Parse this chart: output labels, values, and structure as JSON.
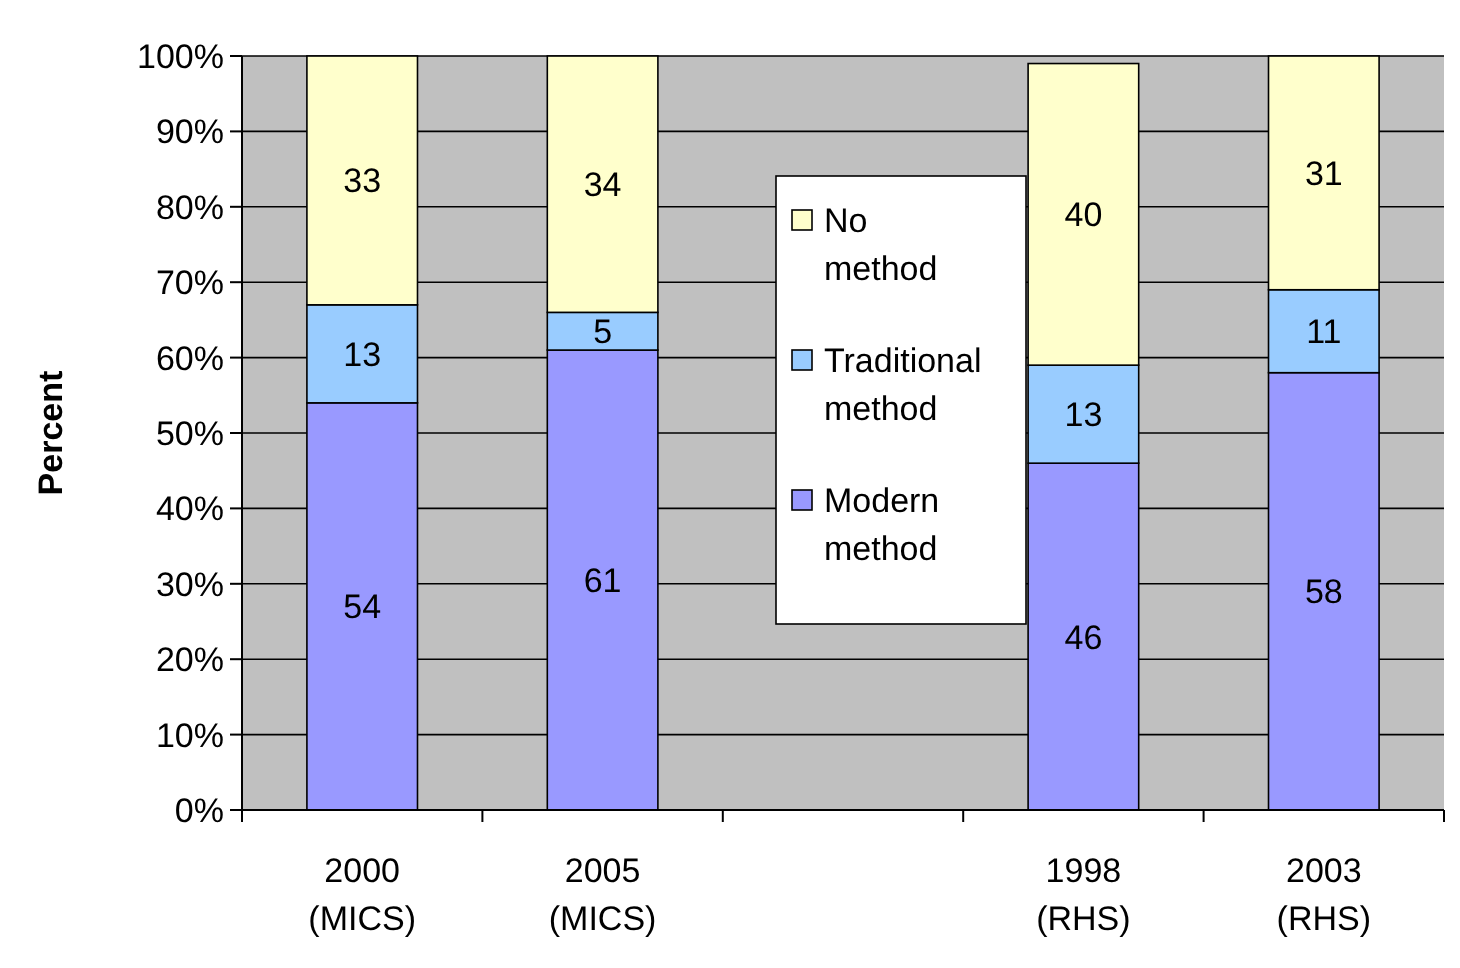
{
  "chart_data": {
    "type": "bar",
    "stacked": true,
    "ylabel": "Percent",
    "categories": [
      "2000\n(MICS)",
      "2005\n(MICS)",
      null,
      "1998\n(RHS)",
      "2003\n(RHS)"
    ],
    "series": [
      {
        "name": "Modern method",
        "color": "#9999ff",
        "values": [
          54,
          61,
          null,
          46,
          58
        ]
      },
      {
        "name": "Traditional method",
        "color": "#99ccff",
        "values": [
          13,
          5,
          null,
          13,
          11
        ]
      },
      {
        "name": "No method",
        "color": "#ffffcc",
        "values": [
          33,
          34,
          null,
          40,
          31
        ]
      }
    ],
    "ylim": [
      0,
      100
    ],
    "yticks": [
      {
        "value": 0,
        "label": "0%"
      },
      {
        "value": 10,
        "label": "10%"
      },
      {
        "value": 20,
        "label": "20%"
      },
      {
        "value": 30,
        "label": "30%"
      },
      {
        "value": 40,
        "label": "40%"
      },
      {
        "value": 50,
        "label": "50%"
      },
      {
        "value": 60,
        "label": "60%"
      },
      {
        "value": 70,
        "label": "70%"
      },
      {
        "value": 80,
        "label": "80%"
      },
      {
        "value": 90,
        "label": "90%"
      },
      {
        "value": 100,
        "label": "100%"
      }
    ],
    "grid": "y",
    "legend": "center",
    "data_labels": true
  }
}
